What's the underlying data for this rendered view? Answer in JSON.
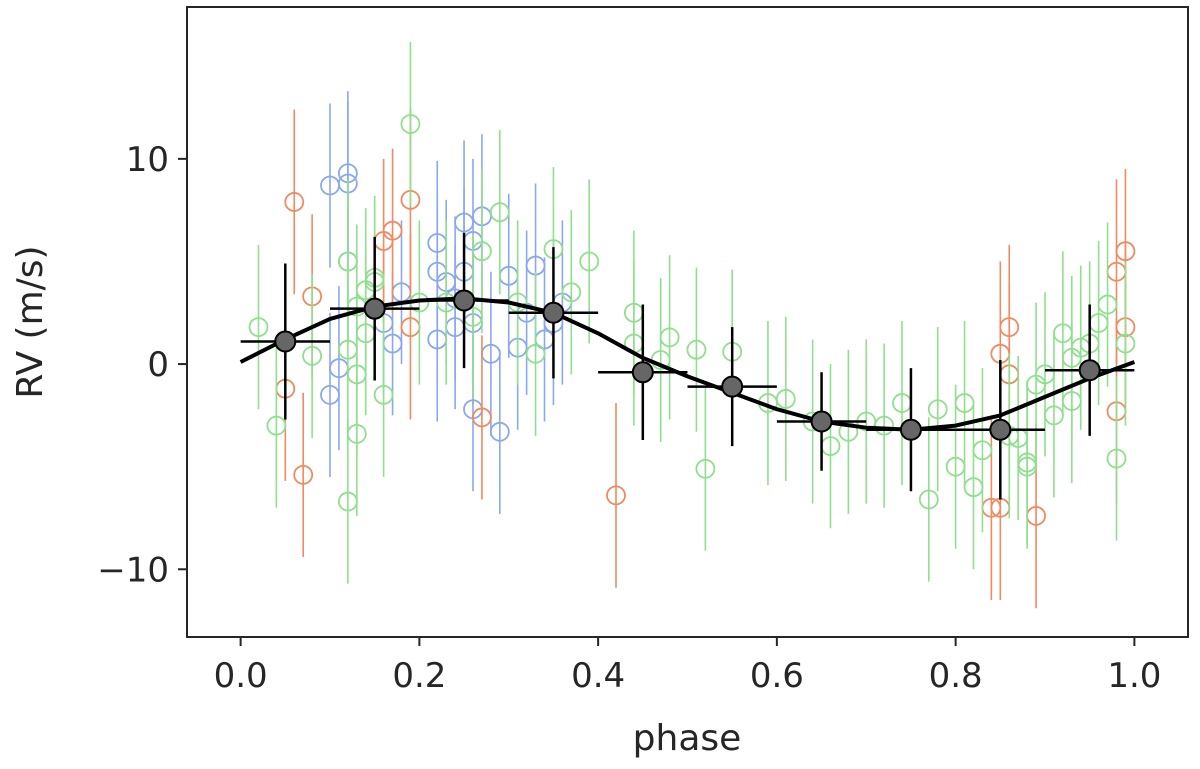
{
  "chart_data": {
    "type": "scatter",
    "title": "",
    "xlabel": "phase",
    "ylabel": "RV (m/s)",
    "xlim": [
      -0.06,
      1.06
    ],
    "ylim": [
      -13.3,
      17.4
    ],
    "x_ticks": [
      0.0,
      0.2,
      0.4,
      0.6,
      0.8,
      1.0
    ],
    "x_tick_labels": [
      "0.0",
      "0.2",
      "0.4",
      "0.6",
      "0.8",
      "1.0"
    ],
    "y_ticks": [
      -10,
      0,
      10
    ],
    "y_tick_labels": [
      "−10",
      "0",
      "10"
    ],
    "grid": false,
    "legend": "none",
    "colors": {
      "blue": "#8aa8ee",
      "orange": "#f08a60",
      "green": "#8fe08c",
      "binned": "#666666",
      "model": "#000000"
    },
    "series": [
      {
        "color": "blue",
        "marker": "open-circle",
        "x": [
          0.1,
          0.12,
          0.12,
          0.11,
          0.1,
          0.12,
          0.16,
          0.17,
          0.18,
          0.22,
          0.22,
          0.23,
          0.24,
          0.24,
          0.25,
          0.25,
          0.26,
          0.26,
          0.27,
          0.28,
          0.29,
          0.3,
          0.31,
          0.32,
          0.33,
          0.34,
          0.35,
          0.36,
          0.26,
          0.22
        ],
        "y": [
          8.7,
          9.3,
          8.8,
          -0.2,
          -1.5,
          5.0,
          2.0,
          1.0,
          3.5,
          5.9,
          4.5,
          4.0,
          3.2,
          1.8,
          6.9,
          4.5,
          2.0,
          6.0,
          7.2,
          0.5,
          -3.3,
          4.3,
          0.8,
          2.5,
          4.8,
          1.2,
          2.0,
          3.0,
          -2.2,
          1.2
        ],
        "yerr": [
          4.0,
          4.0,
          4.0,
          4.0,
          4.0,
          4.0,
          3.5,
          3.5,
          3.5,
          4.0,
          4.0,
          4.0,
          4.0,
          4.0,
          4.0,
          4.0,
          4.0,
          4.0,
          4.0,
          4.0,
          4.0,
          4.0,
          4.0,
          4.0,
          4.0,
          4.0,
          4.0,
          4.0,
          4.0,
          4.0
        ]
      },
      {
        "color": "orange",
        "marker": "open-circle",
        "x": [
          0.06,
          0.05,
          0.07,
          0.08,
          0.17,
          0.19,
          0.19,
          0.27,
          0.16,
          0.42,
          0.84,
          0.85,
          0.85,
          0.86,
          0.86,
          0.89,
          0.98,
          0.98,
          0.99,
          0.99
        ],
        "y": [
          7.9,
          -1.2,
          -5.4,
          3.3,
          6.5,
          8.0,
          1.8,
          -2.6,
          6.0,
          -6.4,
          -7.0,
          -7.0,
          0.5,
          -0.5,
          1.8,
          -7.4,
          4.5,
          -2.3,
          5.5,
          1.8
        ],
        "yerr": [
          4.5,
          4.5,
          4.0,
          4.0,
          4.0,
          4.5,
          4.5,
          4.0,
          4.0,
          4.5,
          4.5,
          4.5,
          4.5,
          4.5,
          4.0,
          4.5,
          4.5,
          4.5,
          4.0,
          4.0
        ]
      },
      {
        "color": "green",
        "marker": "open-circle",
        "x": [
          0.02,
          0.04,
          0.08,
          0.12,
          0.13,
          0.13,
          0.14,
          0.15,
          0.12,
          0.14,
          0.16,
          0.19,
          0.2,
          0.27,
          0.29,
          0.31,
          0.33,
          0.35,
          0.37,
          0.39,
          0.44,
          0.47,
          0.48,
          0.52,
          0.55,
          0.59,
          0.61,
          0.64,
          0.66,
          0.7,
          0.74,
          0.77,
          0.8,
          0.81,
          0.83,
          0.87,
          0.88,
          0.89,
          0.9,
          0.91,
          0.92,
          0.93,
          0.94,
          0.95,
          0.97,
          0.98,
          0.99,
          0.12,
          0.13,
          0.15,
          0.23,
          0.26,
          0.44,
          0.51,
          0.68,
          0.72,
          0.78,
          0.86,
          0.88,
          0.96,
          0.93,
          0.82
        ],
        "y": [
          1.8,
          -3.0,
          0.4,
          -6.7,
          -3.4,
          2.8,
          3.6,
          4.2,
          5.0,
          1.5,
          -1.5,
          11.7,
          3.0,
          5.5,
          7.4,
          3.0,
          0.5,
          5.6,
          3.5,
          5.0,
          2.5,
          0.2,
          1.3,
          -5.1,
          0.6,
          -1.9,
          -1.7,
          -2.8,
          -4.0,
          -2.8,
          -1.9,
          -6.6,
          -5.0,
          -1.9,
          -4.2,
          -3.6,
          -5.0,
          -1.0,
          -0.5,
          -2.5,
          1.5,
          -1.8,
          0.8,
          1.0,
          2.9,
          -4.6,
          1.0,
          0.7,
          -0.5,
          4.0,
          3.0,
          2.3,
          1.0,
          0.7,
          -3.3,
          -3.0,
          -2.2,
          -3.5,
          -4.8,
          2.0,
          0.3,
          -6.0
        ],
        "yerr": [
          4.0,
          4.0,
          4.0,
          4.0,
          4.0,
          4.0,
          4.0,
          4.0,
          4.0,
          4.0,
          4.0,
          4.0,
          4.0,
          4.0,
          4.0,
          4.0,
          4.0,
          4.0,
          4.0,
          4.0,
          4.0,
          4.0,
          4.0,
          4.0,
          4.0,
          4.0,
          4.0,
          4.0,
          4.0,
          4.0,
          4.0,
          4.0,
          4.0,
          4.0,
          4.0,
          4.0,
          4.0,
          4.0,
          4.0,
          4.0,
          4.0,
          4.0,
          4.0,
          4.0,
          4.0,
          4.0,
          4.0,
          4.0,
          4.0,
          4.0,
          4.0,
          4.0,
          4.0,
          4.0,
          4.0,
          4.0,
          4.0,
          4.0,
          4.0,
          4.0,
          4.0,
          4.0
        ]
      },
      {
        "color": "binned",
        "marker": "filled-circle",
        "x": [
          0.05,
          0.15,
          0.25,
          0.35,
          0.45,
          0.55,
          0.65,
          0.75,
          0.85,
          0.95
        ],
        "y": [
          1.1,
          2.7,
          3.1,
          2.5,
          -0.4,
          -1.1,
          -2.8,
          -3.2,
          -3.2,
          -0.3
        ],
        "xerr": [
          0.05,
          0.05,
          0.05,
          0.05,
          0.05,
          0.05,
          0.05,
          0.05,
          0.05,
          0.05
        ],
        "yerr": [
          3.8,
          3.5,
          3.3,
          3.2,
          3.3,
          2.9,
          2.4,
          3.0,
          3.4,
          3.2
        ]
      }
    ],
    "model": {
      "type": "line",
      "color": "model",
      "x": [
        0.0,
        0.05,
        0.1,
        0.15,
        0.2,
        0.25,
        0.3,
        0.35,
        0.4,
        0.45,
        0.5,
        0.55,
        0.6,
        0.65,
        0.7,
        0.75,
        0.8,
        0.85,
        0.9,
        0.95,
        1.0
      ],
      "y": [
        0.1,
        1.2,
        2.2,
        2.8,
        3.1,
        3.2,
        3.0,
        2.5,
        1.5,
        0.3,
        -0.6,
        -1.4,
        -2.2,
        -2.8,
        -3.1,
        -3.2,
        -3.0,
        -2.5,
        -1.6,
        -0.7,
        0.1
      ]
    }
  }
}
